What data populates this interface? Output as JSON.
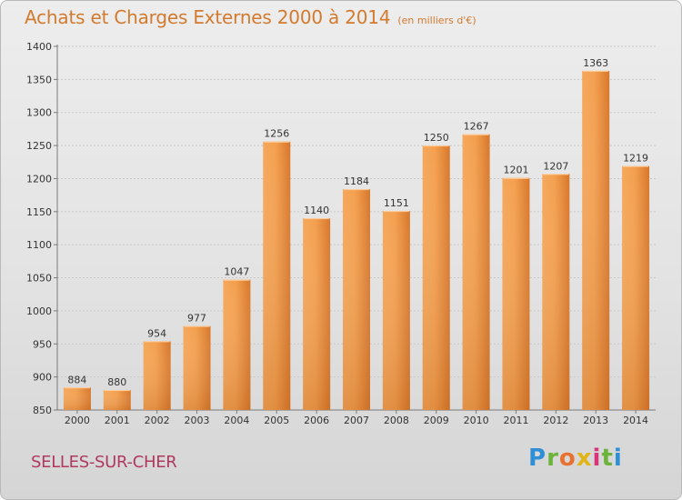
{
  "title": "Achats et Charges Externes 2000 à 2014",
  "unit_label": "(en milliers d'€)",
  "place": "SELLES-SUR-CHER",
  "logo": {
    "letters": [
      "P",
      "r",
      "o",
      "x",
      "i",
      "t",
      "i"
    ]
  },
  "colors": {
    "title": "#d27a2e",
    "bar_light": "#f6a758",
    "bar_dark": "#d8772a",
    "place": "#b03a5e"
  },
  "chart_data": {
    "type": "bar",
    "categories": [
      "2000",
      "2001",
      "2002",
      "2003",
      "2004",
      "2005",
      "2006",
      "2007",
      "2008",
      "2009",
      "2010",
      "2011",
      "2012",
      "2013",
      "2014"
    ],
    "values": [
      884,
      880,
      954,
      977,
      1047,
      1256,
      1140,
      1184,
      1151,
      1250,
      1267,
      1201,
      1207,
      1363,
      1219
    ],
    "ylim": [
      850,
      1400
    ],
    "yticks": [
      850,
      900,
      950,
      1000,
      1050,
      1100,
      1150,
      1200,
      1250,
      1300,
      1350,
      1400
    ],
    "grid": true,
    "data_labels": true
  }
}
